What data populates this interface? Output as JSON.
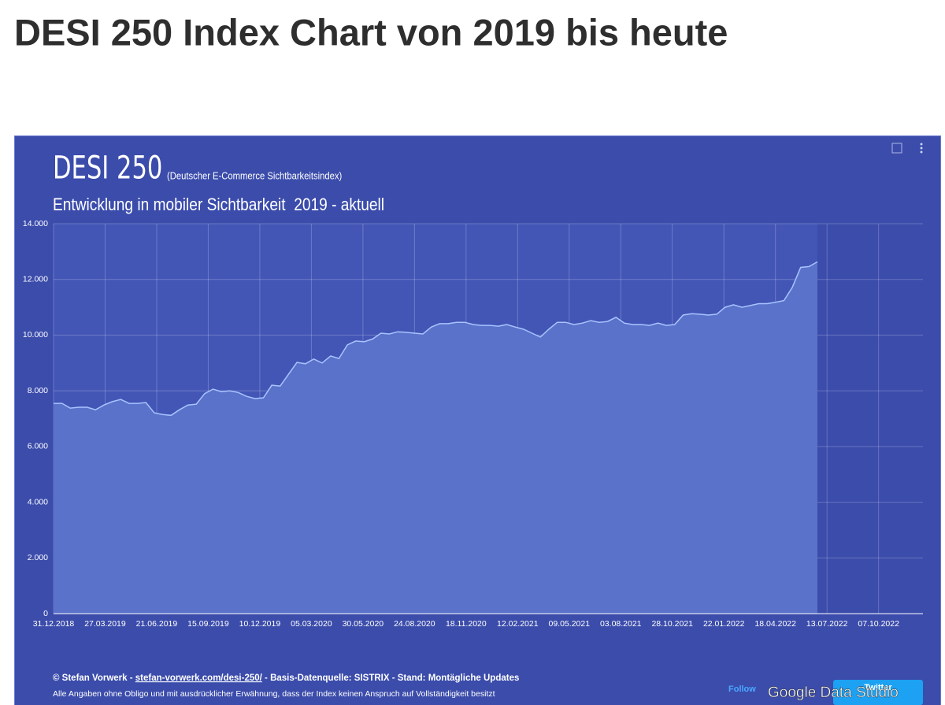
{
  "page_title": "DESI 250 Index Chart von 2019 bis heute",
  "chart_data": {
    "type": "area",
    "title": "DESI 250",
    "title_note": "(Deutscher E-Commerce Sichtbarkeitsindex)",
    "subtitle": "Entwicklung in mobiler Sichtbarkeit  2019 - aktuell",
    "x": [
      "2018-12-31",
      "2019-01-14",
      "2019-01-28",
      "2019-02-11",
      "2019-02-25",
      "2019-03-11",
      "2019-03-25",
      "2019-04-08",
      "2019-04-22",
      "2019-05-06",
      "2019-05-20",
      "2019-06-03",
      "2019-06-17",
      "2019-07-01",
      "2019-07-15",
      "2019-07-29",
      "2019-08-12",
      "2019-08-26",
      "2019-09-09",
      "2019-09-23",
      "2019-10-07",
      "2019-10-21",
      "2019-11-04",
      "2019-11-18",
      "2019-12-02",
      "2019-12-16",
      "2019-12-30",
      "2020-01-13",
      "2020-01-27",
      "2020-02-10",
      "2020-02-24",
      "2020-03-09",
      "2020-03-23",
      "2020-04-06",
      "2020-04-20",
      "2020-05-04",
      "2020-05-18",
      "2020-06-01",
      "2020-06-15",
      "2020-06-29",
      "2020-07-13",
      "2020-07-27",
      "2020-08-10",
      "2020-08-24",
      "2020-09-07",
      "2020-09-21",
      "2020-10-05",
      "2020-10-19",
      "2020-11-02",
      "2020-11-16",
      "2020-11-30",
      "2020-12-14",
      "2020-12-28",
      "2021-01-11",
      "2021-01-25",
      "2021-02-08",
      "2021-02-22",
      "2021-03-08",
      "2021-03-22",
      "2021-04-05",
      "2021-04-19",
      "2021-05-03",
      "2021-05-17",
      "2021-05-31",
      "2021-06-14",
      "2021-06-28",
      "2021-07-12",
      "2021-07-26",
      "2021-08-09",
      "2021-08-23",
      "2021-09-06",
      "2021-09-20",
      "2021-10-04",
      "2021-10-18",
      "2021-11-01",
      "2021-11-15",
      "2021-11-29",
      "2021-12-13",
      "2021-12-27",
      "2022-01-10",
      "2022-01-24",
      "2022-02-07",
      "2022-02-21",
      "2022-03-07",
      "2022-03-21",
      "2022-04-04",
      "2022-04-18",
      "2022-05-02",
      "2022-05-16",
      "2022-05-30",
      "2022-06-13",
      "2022-06-27"
    ],
    "values": [
      7550,
      7550,
      7380,
      7410,
      7410,
      7320,
      7490,
      7610,
      7690,
      7550,
      7550,
      7580,
      7210,
      7150,
      7120,
      7320,
      7490,
      7520,
      7900,
      8060,
      7970,
      8000,
      7940,
      7800,
      7720,
      7750,
      8200,
      8170,
      8600,
      9020,
      8970,
      9140,
      9000,
      9250,
      9160,
      9650,
      9790,
      9760,
      9860,
      10070,
      10040,
      10120,
      10100,
      10070,
      10040,
      10290,
      10410,
      10410,
      10460,
      10460,
      10380,
      10350,
      10350,
      10320,
      10380,
      10290,
      10210,
      10070,
      9930,
      10210,
      10460,
      10460,
      10380,
      10430,
      10520,
      10460,
      10490,
      10640,
      10430,
      10380,
      10380,
      10350,
      10430,
      10350,
      10380,
      10720,
      10770,
      10750,
      10720,
      10750,
      11000,
      11090,
      11000,
      11060,
      11130,
      11130,
      11180,
      11240,
      11710,
      12430,
      12460,
      12630
    ],
    "color": "#a9c4ff",
    "fill": "#5a72c9",
    "xlim": [
      "2018-12-31",
      "2022-12-20"
    ],
    "xticks": [
      {
        "value": "2018-12-31",
        "label": "31.12.2018"
      },
      {
        "value": "2019-03-27",
        "label": "27.03.2019"
      },
      {
        "value": "2019-06-21",
        "label": "21.06.2019"
      },
      {
        "value": "2019-09-15",
        "label": "15.09.2019"
      },
      {
        "value": "2019-12-10",
        "label": "10.12.2019"
      },
      {
        "value": "2020-03-05",
        "label": "05.03.2020"
      },
      {
        "value": "2020-05-30",
        "label": "30.05.2020"
      },
      {
        "value": "2020-08-24",
        "label": "24.08.2020"
      },
      {
        "value": "2020-11-18",
        "label": "18.11.2020"
      },
      {
        "value": "2021-02-12",
        "label": "12.02.2021"
      },
      {
        "value": "2021-05-09",
        "label": "09.05.2021"
      },
      {
        "value": "2021-08-03",
        "label": "03.08.2021"
      },
      {
        "value": "2021-10-28",
        "label": "28.10.2021"
      },
      {
        "value": "2022-01-22",
        "label": "22.01.2022"
      },
      {
        "value": "2022-04-18",
        "label": "18.04.2022"
      },
      {
        "value": "2022-07-13",
        "label": "13.07.2022"
      },
      {
        "value": "2022-10-07",
        "label": "07.10.2022"
      }
    ],
    "ylim": [
      0,
      14000
    ],
    "yticks": [
      0,
      {
        "value": 2000,
        "label": "2.000"
      },
      {
        "value": 4000,
        "label": "4.000"
      },
      {
        "value": 6000,
        "label": "6.000"
      },
      {
        "value": 8000,
        "label": "8.000"
      },
      {
        "value": 10000,
        "label": "10.000"
      },
      {
        "value": 12000,
        "label": "12.000"
      },
      {
        "value": 14000,
        "label": "14.000"
      }
    ],
    "grid": true
  },
  "footer": {
    "credit": "© Stefan Vorwerk - ",
    "link": "stefan-vorwerk.com/desi-250/",
    "source": " - Basis-Datenquelle: SISTRIX - Stand: Montägliche Updates",
    "disclaimer": "Alle Angaben ohne Obligo und mit ausdrücklicher Erwähnung, dass der Index keinen Anspruch auf Vollständigkeit besitzt",
    "follow": "Follow",
    "brand": "Google Data Studio",
    "button": "Twitter"
  }
}
